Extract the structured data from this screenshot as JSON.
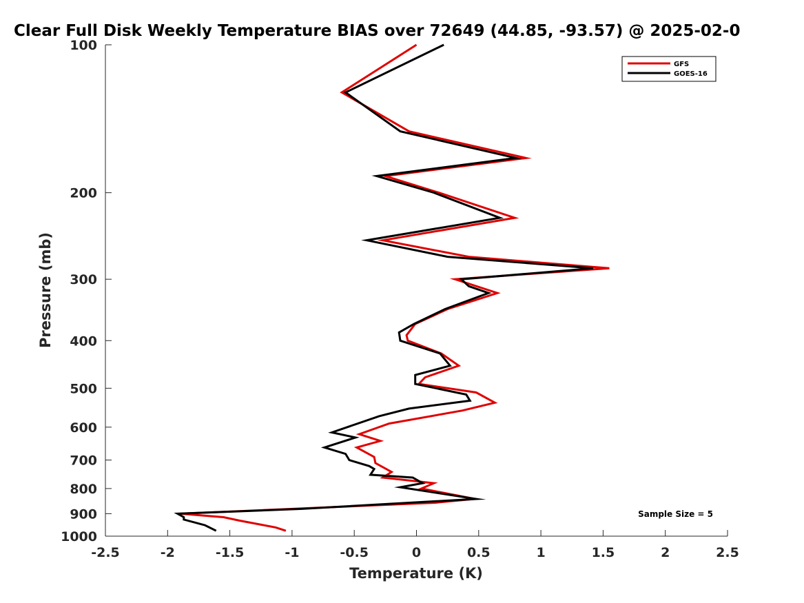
{
  "chart_data": {
    "type": "line",
    "title": "Clear Full Disk Weekly Temperature BIAS over 72649 (44.85, -93.57) @ 2025-02-0",
    "xlabel": "Temperature (K)",
    "ylabel": "Pressure (mb)",
    "xlim": [
      -2.5,
      2.5
    ],
    "ylim": [
      100,
      1000
    ],
    "y_scale": "log",
    "y_reversed": true,
    "x_ticks": [
      -2.5,
      -2,
      -1.5,
      -1,
      -0.5,
      0,
      0.5,
      1,
      1.5,
      2,
      2.5
    ],
    "x_tick_labels": [
      "-2.5",
      "-2",
      "-1.5",
      "-1",
      "-0.5",
      "0",
      "0.5",
      "1",
      "1.5",
      "2",
      "2.5"
    ],
    "y_ticks": [
      100,
      200,
      300,
      400,
      500,
      600,
      700,
      800,
      900,
      1000
    ],
    "y_tick_labels": [
      "100",
      "200",
      "300",
      "400",
      "500",
      "600",
      "700",
      "800",
      "900",
      "1000"
    ],
    "grid": false,
    "legend_position": "top-right",
    "annotation": "Sample Size = 5",
    "series": [
      {
        "name": "GFS",
        "color": "#e00000",
        "points": [
          [
            0.0,
            100
          ],
          [
            -0.6,
            125
          ],
          [
            -0.06,
            150
          ],
          [
            0.88,
            170
          ],
          [
            -0.25,
            185
          ],
          [
            0.18,
            200
          ],
          [
            0.79,
            225
          ],
          [
            -0.27,
            250
          ],
          [
            0.42,
            270
          ],
          [
            1.55,
            285
          ],
          [
            0.31,
            300
          ],
          [
            0.65,
            320
          ],
          [
            0.25,
            345
          ],
          [
            -0.01,
            370
          ],
          [
            -0.08,
            390
          ],
          [
            -0.07,
            400
          ],
          [
            0.2,
            425
          ],
          [
            0.34,
            450
          ],
          [
            0.07,
            475
          ],
          [
            0.02,
            490
          ],
          [
            0.48,
            510
          ],
          [
            0.63,
            535
          ],
          [
            0.37,
            555
          ],
          [
            -0.22,
            590
          ],
          [
            -0.46,
            620
          ],
          [
            -0.29,
            640
          ],
          [
            -0.48,
            660
          ],
          [
            -0.34,
            690
          ],
          [
            -0.33,
            710
          ],
          [
            -0.2,
            740
          ],
          [
            -0.27,
            760
          ],
          [
            0.14,
            780
          ],
          [
            0.04,
            800
          ],
          [
            0.47,
            840
          ],
          [
            0.15,
            855
          ],
          [
            -1.9,
            900
          ],
          [
            -1.55,
            915
          ],
          [
            -1.42,
            930
          ],
          [
            -1.13,
            960
          ],
          [
            -1.05,
            975
          ]
        ]
      },
      {
        "name": "GOES-16",
        "color": "#000000",
        "points": [
          [
            0.22,
            100
          ],
          [
            -0.57,
            125
          ],
          [
            -0.13,
            150
          ],
          [
            0.8,
            170
          ],
          [
            -0.32,
            185
          ],
          [
            0.14,
            200
          ],
          [
            0.67,
            225
          ],
          [
            -0.4,
            250
          ],
          [
            0.25,
            270
          ],
          [
            1.42,
            285
          ],
          [
            0.36,
            300
          ],
          [
            0.42,
            310
          ],
          [
            0.58,
            320
          ],
          [
            0.23,
            345
          ],
          [
            -0.02,
            370
          ],
          [
            -0.14,
            385
          ],
          [
            -0.13,
            400
          ],
          [
            0.19,
            425
          ],
          [
            0.27,
            450
          ],
          [
            -0.01,
            470
          ],
          [
            -0.01,
            490
          ],
          [
            0.4,
            515
          ],
          [
            0.43,
            530
          ],
          [
            -0.06,
            550
          ],
          [
            -0.3,
            570
          ],
          [
            -0.68,
            615
          ],
          [
            -0.49,
            630
          ],
          [
            -0.74,
            660
          ],
          [
            -0.57,
            680
          ],
          [
            -0.54,
            700
          ],
          [
            -0.38,
            720
          ],
          [
            -0.34,
            730
          ],
          [
            -0.37,
            750
          ],
          [
            -0.03,
            760
          ],
          [
            0.05,
            780
          ],
          [
            -0.13,
            795
          ],
          [
            0.48,
            840
          ],
          [
            -0.92,
            880
          ],
          [
            -1.92,
            900
          ],
          [
            -1.87,
            915
          ],
          [
            -1.87,
            925
          ],
          [
            -1.7,
            950
          ],
          [
            -1.61,
            975
          ]
        ]
      }
    ]
  }
}
